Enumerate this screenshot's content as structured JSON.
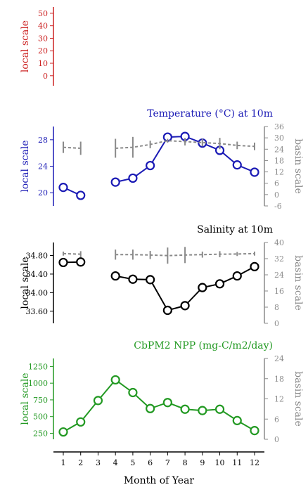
{
  "chart_data": [
    {
      "type": "line",
      "title": "",
      "ylabel_left": "local scale",
      "color": "#cc2222",
      "ylim_left": [
        -8,
        55
      ],
      "yticks_left": [
        0,
        10,
        20,
        30,
        40,
        50
      ],
      "series": []
    },
    {
      "type": "line",
      "title": "Temperature (°C) at 10m",
      "ylabel_left": "local scale",
      "ylabel_right": "basin scale",
      "color": "#1a1ab5",
      "ylim_left": [
        18,
        30
      ],
      "yticks_left": [
        20,
        24,
        28
      ],
      "ylim_right": [
        -6,
        36
      ],
      "yticks_right": [
        -6,
        0,
        6,
        12,
        18,
        24,
        30,
        36
      ],
      "x": [
        1,
        2,
        3,
        4,
        5,
        6,
        7,
        8,
        9,
        10,
        11,
        12
      ],
      "series": [
        {
          "axis": "left",
          "style": "local",
          "values": [
            20.8,
            19.6,
            null,
            21.6,
            22.2,
            24.1,
            28.4,
            28.5,
            27.5,
            26.4,
            24.2,
            23.1
          ]
        },
        {
          "axis": "right",
          "style": "basin",
          "values": [
            25,
            24.5,
            null,
            24.5,
            25,
            26.5,
            28.5,
            28,
            27.5,
            27,
            26,
            25.5
          ],
          "err": [
            3,
            3.5,
            null,
            5,
            5.5,
            2,
            1,
            2,
            2,
            3,
            2,
            2
          ]
        }
      ]
    },
    {
      "type": "line",
      "title": "Salinity at 10m",
      "ylabel_left": "local scale",
      "ylabel_right": "basin scale",
      "color": "#000000",
      "ylim_left": [
        33.34,
        35.08
      ],
      "yticks_left": [
        "33.60",
        "34.00",
        "34.40",
        "34.80"
      ],
      "ylim_right": [
        0,
        40
      ],
      "yticks_right": [
        0,
        8,
        16,
        24,
        32,
        40
      ],
      "x": [
        1,
        2,
        3,
        4,
        5,
        6,
        7,
        8,
        9,
        10,
        11,
        12
      ],
      "series": [
        {
          "axis": "left",
          "style": "local",
          "values": [
            34.65,
            34.66,
            null,
            34.36,
            34.29,
            34.28,
            33.62,
            33.72,
            34.11,
            34.19,
            34.36,
            34.56
          ]
        },
        {
          "axis": "right",
          "style": "basin",
          "values": [
            34.5,
            34.2,
            null,
            34,
            34,
            33.8,
            33.5,
            33.8,
            34,
            34.2,
            34.3,
            34.5
          ],
          "err": [
            1,
            1.5,
            null,
            2.5,
            2.5,
            2,
            4,
            4,
            1.5,
            1.5,
            1,
            1
          ]
        }
      ]
    },
    {
      "type": "line",
      "title": "CbPM2 NPP (mg-C/m2/day)",
      "ylabel_left": "local scale",
      "ylabel_right": "basin scale",
      "color": "#229922",
      "ylim_left": [
        160,
        1370
      ],
      "yticks_left": [
        250,
        500,
        750,
        1000,
        1250
      ],
      "ylim_right": [
        0,
        24
      ],
      "yticks_right": [
        0,
        6,
        12,
        18,
        24
      ],
      "x": [
        1,
        2,
        3,
        4,
        5,
        6,
        7,
        8,
        9,
        10,
        11,
        12
      ],
      "series": [
        {
          "axis": "left",
          "style": "local",
          "values": [
            270,
            420,
            740,
            1050,
            860,
            620,
            710,
            610,
            590,
            610,
            440,
            290
          ]
        }
      ]
    }
  ],
  "xaxis": {
    "label": "Month of Year",
    "ticks": [
      "1",
      "2",
      "3",
      "4",
      "5",
      "6",
      "7",
      "8",
      "9",
      "10",
      "11",
      "12"
    ],
    "xlim": [
      0.45,
      12.55
    ]
  },
  "colors": {
    "basin": "#8a8a8a"
  }
}
